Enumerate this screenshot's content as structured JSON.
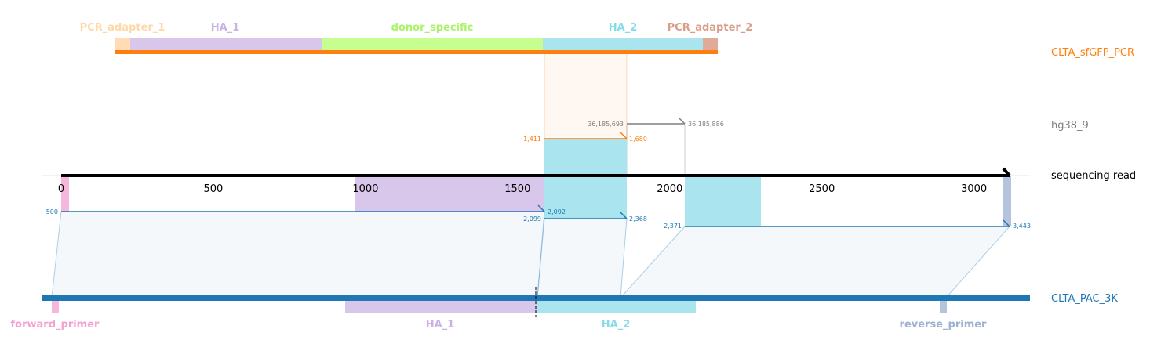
{
  "tracks": {
    "top": {
      "name": "CLTA_sfGFP_PCR",
      "color": "#ff7f0e"
    },
    "middle": {
      "name": "hg38_9",
      "color": "#7f7f7f"
    },
    "read": {
      "name": "sequencing read",
      "color": "#000000"
    },
    "bottom": {
      "name": "CLTA_PAC_3K",
      "color": "#1f77b4"
    }
  },
  "axis": {
    "min": 0,
    "max": 3117,
    "ticks": [
      "0",
      "500",
      "1000",
      "1500",
      "2000",
      "2500",
      "3000"
    ]
  },
  "top_features": [
    {
      "label": "PCR_adapter_1",
      "color": "#ffdcb3",
      "label_color": "#ffd7a8"
    },
    {
      "label": "HA_1",
      "color": "#d8c6eb",
      "label_color": "#c9b2e4"
    },
    {
      "label": "donor_specific",
      "color": "#c6ff8f",
      "label_color": "#aaf36a"
    },
    {
      "label": "HA_2",
      "color": "#aae4ee",
      "label_color": "#86dbe8"
    },
    {
      "label": "PCR_adapter_2",
      "color": "#dfab98",
      "label_color": "#d99e88"
    }
  ],
  "bottom_features": [
    {
      "label": "forward_primer",
      "color": "#f7b6dc",
      "label_color": "#f59fd2"
    },
    {
      "label": "HA_1",
      "color": "#d8c6eb",
      "label_color": "#c9b2e4"
    },
    {
      "label": "HA_2",
      "color": "#aae4ee",
      "label_color": "#86dbe8"
    },
    {
      "label": "reverse_primer",
      "color": "#b4c4dc",
      "label_color": "#9fb1d1"
    }
  ],
  "alignments": {
    "top": {
      "read_start": "1,411",
      "read_end": "1,680"
    },
    "hg38": {
      "ref_start": "36,185,693",
      "ref_end": "36,185,886"
    },
    "bottom": [
      {
        "read_start": "500",
        "read_end": "2,092"
      },
      {
        "read_start": "2,099",
        "read_end": "2,368"
      },
      {
        "read_start": "2,371",
        "read_end": "3,443"
      }
    ]
  }
}
